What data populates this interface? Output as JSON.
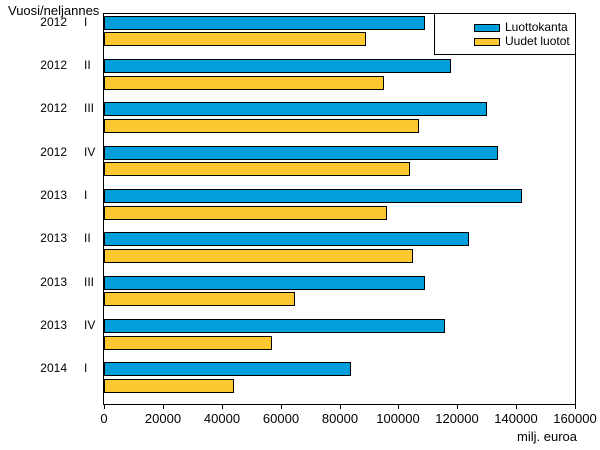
{
  "chart_data": {
    "type": "bar",
    "orientation": "horizontal",
    "title": "Vuosi/neljannes",
    "xlabel": "milj. euroa",
    "categories": [
      {
        "year": "2012",
        "quarter": "I"
      },
      {
        "year": "2012",
        "quarter": "II"
      },
      {
        "year": "2012",
        "quarter": "III"
      },
      {
        "year": "2012",
        "quarter": "IV"
      },
      {
        "year": "2013",
        "quarter": "I"
      },
      {
        "year": "2013",
        "quarter": "II"
      },
      {
        "year": "2013",
        "quarter": "III"
      },
      {
        "year": "2013",
        "quarter": "IV"
      },
      {
        "year": "2014",
        "quarter": "I"
      }
    ],
    "series": [
      {
        "name": "Luottokanta",
        "color": "#009EDB",
        "values": [
          109000,
          118000,
          130000,
          134000,
          142000,
          124000,
          109000,
          116000,
          84000
        ]
      },
      {
        "name": "Uudet luotot",
        "color": "#FDC72F",
        "values": [
          89000,
          95000,
          107000,
          104000,
          96000,
          105000,
          65000,
          57000,
          44000
        ]
      }
    ],
    "xlim": [
      0,
      160000
    ],
    "xticks": [
      0,
      20000,
      40000,
      60000,
      80000,
      100000,
      120000,
      140000,
      160000
    ],
    "legend_position": "top-right",
    "grid": false,
    "bar_border_color": "#000000",
    "background_color": "#FFFFFF"
  }
}
